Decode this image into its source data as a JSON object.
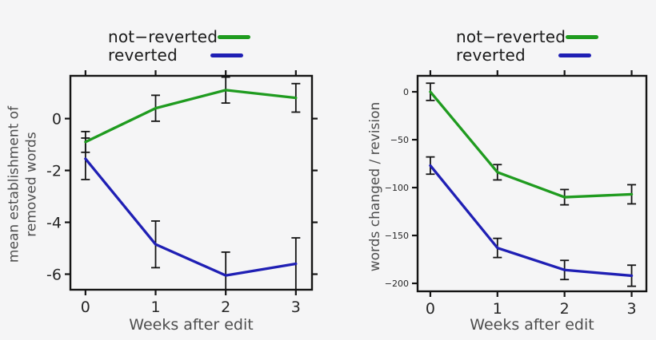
{
  "page": {
    "background": "#f5f5f6",
    "axis_color": "#141414",
    "tick_label_color": "#262626",
    "axis_title_color": "#4d4d4d"
  },
  "chart_data": [
    {
      "type": "line",
      "title": "",
      "xlabel": "Weeks after edit",
      "ylabel": "mean establishment of removed words",
      "ylabel_lines": [
        "mean establishment of",
        "removed words"
      ],
      "x": [
        0,
        1,
        2,
        3
      ],
      "xtick_labels": [
        "0",
        "1",
        "2",
        "3"
      ],
      "yticks": [
        0,
        -2,
        -4,
        -6
      ],
      "ytick_labels": [
        "0",
        "-2",
        "-4",
        "-6"
      ],
      "xlim": [
        -0.215,
        3.23
      ],
      "ylim": [
        -6.6,
        1.65
      ],
      "grid": false,
      "legend_position": "top",
      "error_bars": true,
      "series": [
        {
          "name": "not−reverted",
          "color": "#1f9b1f",
          "values": [
            -0.9,
            0.4,
            1.1,
            0.8
          ],
          "errors": [
            0.4,
            0.5,
            0.5,
            0.55
          ]
        },
        {
          "name": "reverted",
          "color": "#1f1fb4",
          "values": [
            -1.55,
            -4.85,
            -6.05,
            -5.6
          ],
          "errors": [
            0.8,
            0.9,
            0.9,
            1.0
          ]
        }
      ]
    },
    {
      "type": "line",
      "title": "",
      "xlabel": "Weeks after edit",
      "ylabel": "words changed / revision",
      "ylabel_lines": [
        "words changed / revision"
      ],
      "x": [
        0,
        1,
        2,
        3
      ],
      "xtick_labels": [
        "0",
        "1",
        "2",
        "3"
      ],
      "yticks": [
        0,
        -50,
        -100,
        -150,
        -200
      ],
      "ytick_labels": [
        "0",
        "−50",
        "−100",
        "−150",
        "−200"
      ],
      "xlim": [
        -0.19,
        3.22
      ],
      "ylim": [
        -208.3,
        16.7
      ],
      "grid": false,
      "legend_position": "top",
      "error_bars": true,
      "series": [
        {
          "name": "not−reverted",
          "color": "#1f9b1f",
          "values": [
            0,
            -84,
            -110,
            -107
          ],
          "errors": [
            9,
            8,
            8,
            10
          ]
        },
        {
          "name": "reverted",
          "color": "#1f1fb4",
          "values": [
            -77,
            -163,
            -186,
            -192
          ],
          "errors": [
            9,
            10,
            10,
            11
          ]
        }
      ]
    }
  ]
}
